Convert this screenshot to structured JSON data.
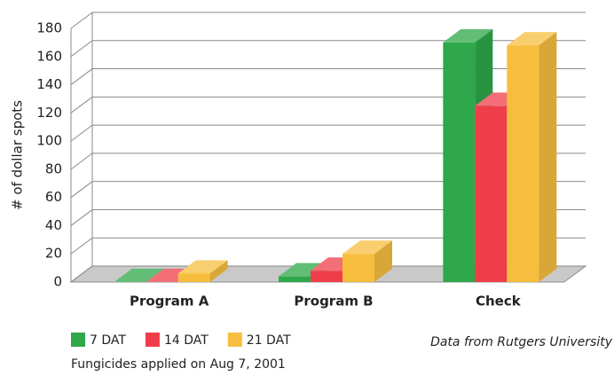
{
  "chart_data": {
    "type": "bar3d",
    "y_label": "# of dollar spots",
    "categories": [
      "Program A",
      "Program B",
      "Check"
    ],
    "series": [
      {
        "name": "7 DAT",
        "color": "#2ea84a",
        "values": [
          0,
          4,
          170
        ]
      },
      {
        "name": "14 DAT",
        "color": "#ef3e4a",
        "values": [
          0,
          8,
          125
        ]
      },
      {
        "name": "21 DAT",
        "color": "#f7be3e",
        "values": [
          6,
          20,
          168
        ]
      }
    ],
    "ylim": [
      0,
      180
    ],
    "yticks": [
      0,
      20,
      40,
      60,
      80,
      100,
      120,
      140,
      160,
      180
    ],
    "grid": true,
    "source": "Data from Rutgers University",
    "note": "Fungicides applied on Aug 7, 2001"
  }
}
